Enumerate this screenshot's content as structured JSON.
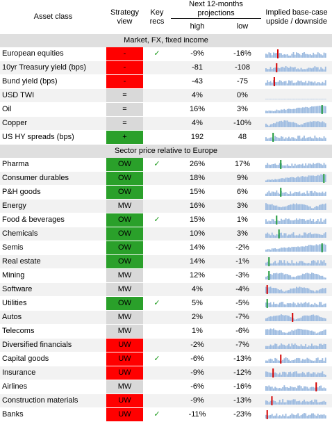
{
  "header": {
    "asset_class": "Asset class",
    "strategy_view": "Strategy view",
    "key_recs": "Key recs",
    "projections": "Next 12-months projections",
    "high": "high",
    "low": "low",
    "implied": "Implied base-case upside / downside"
  },
  "sections": [
    {
      "title": "Market, FX, fixed income",
      "rows": [
        {
          "name": "European equities",
          "view": "-",
          "view_color": "#ff0000",
          "rec": "✓",
          "high": "-9%",
          "low": "-16%",
          "marker": 0.2,
          "marker_color": "#d40000",
          "trend": "flat"
        },
        {
          "name": "10yr Treasury yield (bps)",
          "view": "-",
          "view_color": "#ff0000",
          "rec": "",
          "high": "-81",
          "low": "-108",
          "marker": 0.18,
          "marker_color": "#d40000",
          "trend": "flat"
        },
        {
          "name": "Bund yield (bps)",
          "view": "-",
          "view_color": "#ff0000",
          "rec": "",
          "high": "-43",
          "low": "-75",
          "marker": 0.14,
          "marker_color": "#d40000",
          "trend": "flat"
        },
        {
          "name": "USD TWI",
          "view": "=",
          "view_color": "#d9d9d9",
          "rec": "",
          "high": "4%",
          "low": "0%",
          "marker": null,
          "marker_color": "",
          "trend": "none"
        },
        {
          "name": "Oil",
          "view": "=",
          "view_color": "#d9d9d9",
          "rec": "",
          "high": "16%",
          "low": "3%",
          "marker": 0.95,
          "marker_color": "#1f9a3a",
          "trend": "up"
        },
        {
          "name": "Copper",
          "view": "=",
          "view_color": "#d9d9d9",
          "rec": "",
          "high": "4%",
          "low": "-10%",
          "marker": null,
          "marker_color": "",
          "trend": "wave"
        },
        {
          "name": "US HY spreads (bps)",
          "view": "+",
          "view_color": "#2aa02a",
          "rec": "",
          "high": "192",
          "low": "48",
          "marker": 0.12,
          "marker_color": "#1f9a3a",
          "trend": "flat"
        }
      ]
    },
    {
      "title": "Sector price relative to Europe",
      "rows": [
        {
          "name": "Pharma",
          "view": "OW",
          "view_color": "#2aa02a",
          "rec": "✓",
          "high": "26%",
          "low": "17%",
          "marker": 0.25,
          "marker_color": "#1f9a3a",
          "trend": "flat"
        },
        {
          "name": "Consumer durables",
          "view": "OW",
          "view_color": "#2aa02a",
          "rec": "",
          "high": "18%",
          "low": "9%",
          "marker": 0.98,
          "marker_color": "#1f9a3a",
          "trend": "up"
        },
        {
          "name": "P&H goods",
          "view": "OW",
          "view_color": "#2aa02a",
          "rec": "",
          "high": "15%",
          "low": "6%",
          "marker": 0.25,
          "marker_color": "#1f9a3a",
          "trend": "flat"
        },
        {
          "name": "Energy",
          "view": "MW",
          "view_color": "#d9d9d9",
          "rec": "",
          "high": "16%",
          "low": "3%",
          "marker": null,
          "marker_color": "",
          "trend": "wave"
        },
        {
          "name": "Food & beverages",
          "view": "OW",
          "view_color": "#2aa02a",
          "rec": "✓",
          "high": "15%",
          "low": "1%",
          "marker": 0.18,
          "marker_color": "#1f9a3a",
          "trend": "flat"
        },
        {
          "name": "Chemicals",
          "view": "OW",
          "view_color": "#2aa02a",
          "rec": "",
          "high": "10%",
          "low": "3%",
          "marker": 0.22,
          "marker_color": "#1f9a3a",
          "trend": "flat"
        },
        {
          "name": "Semis",
          "view": "OW",
          "view_color": "#2aa02a",
          "rec": "",
          "high": "14%",
          "low": "-2%",
          "marker": 0.95,
          "marker_color": "#1f9a3a",
          "trend": "up"
        },
        {
          "name": "Real estate",
          "view": "OW",
          "view_color": "#2aa02a",
          "rec": "",
          "high": "14%",
          "low": "-1%",
          "marker": 0.05,
          "marker_color": "#1f9a3a",
          "trend": "flat"
        },
        {
          "name": "Mining",
          "view": "MW",
          "view_color": "#d9d9d9",
          "rec": "",
          "high": "12%",
          "low": "-3%",
          "marker": 0.05,
          "marker_color": "#1f9a3a",
          "trend": "wave"
        },
        {
          "name": "Software",
          "view": "MW",
          "view_color": "#d9d9d9",
          "rec": "",
          "high": "4%",
          "low": "-4%",
          "marker": 0.02,
          "marker_color": "#d40000",
          "trend": "wave"
        },
        {
          "name": "Utilities",
          "view": "OW",
          "view_color": "#2aa02a",
          "rec": "✓",
          "high": "5%",
          "low": "-5%",
          "marker": 0.02,
          "marker_color": "#1f9a3a",
          "trend": "flat"
        },
        {
          "name": "Autos",
          "view": "MW",
          "view_color": "#d9d9d9",
          "rec": "",
          "high": "2%",
          "low": "-7%",
          "marker": 0.45,
          "marker_color": "#d40000",
          "trend": "wave"
        },
        {
          "name": "Telecoms",
          "view": "MW",
          "view_color": "#d9d9d9",
          "rec": "",
          "high": "1%",
          "low": "-6%",
          "marker": null,
          "marker_color": "",
          "trend": "wave"
        },
        {
          "name": "Diversified financials",
          "view": "UW",
          "view_color": "#ff0000",
          "rec": "",
          "high": "-2%",
          "low": "-7%",
          "marker": null,
          "marker_color": "",
          "trend": "flat"
        },
        {
          "name": "Capital goods",
          "view": "UW",
          "view_color": "#ff0000",
          "rec": "✓",
          "high": "-6%",
          "low": "-13%",
          "marker": 0.25,
          "marker_color": "#d40000",
          "trend": "flat"
        },
        {
          "name": "Insurance",
          "view": "UW",
          "view_color": "#ff0000",
          "rec": "",
          "high": "-9%",
          "low": "-12%",
          "marker": 0.12,
          "marker_color": "#d40000",
          "trend": "flat"
        },
        {
          "name": "Airlines",
          "view": "MW",
          "view_color": "#d9d9d9",
          "rec": "",
          "high": "-6%",
          "low": "-16%",
          "marker": 0.85,
          "marker_color": "#d40000",
          "trend": "flat"
        },
        {
          "name": "Construction materials",
          "view": "UW",
          "view_color": "#ff0000",
          "rec": "",
          "high": "-9%",
          "low": "-13%",
          "marker": 0.1,
          "marker_color": "#d40000",
          "trend": "flat"
        },
        {
          "name": "Banks",
          "view": "UW",
          "view_color": "#ff0000",
          "rec": "✓",
          "high": "-11%",
          "low": "-23%",
          "marker": 0.02,
          "marker_color": "#d40000",
          "trend": "flat"
        }
      ]
    }
  ],
  "colors": {
    "bar": "#9dbbe0",
    "accent_green": "#1f9a3a",
    "accent_red": "#d40000"
  }
}
